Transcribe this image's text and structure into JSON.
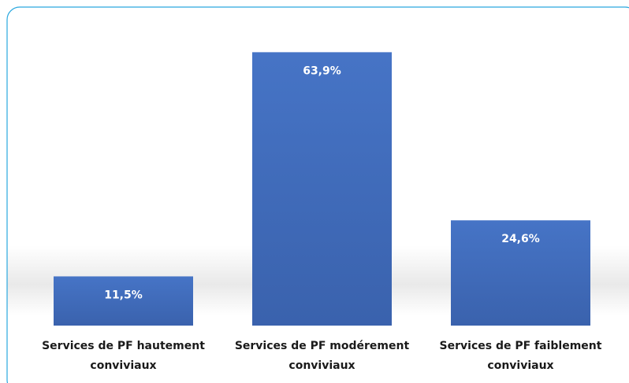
{
  "chart_data": {
    "type": "bar",
    "categories": [
      "Services de PF hautement conviviaux",
      "Services de PF modérement conviviaux",
      "Services de PF faiblement conviviaux"
    ],
    "values": [
      11.5,
      63.9,
      24.6
    ],
    "value_labels": [
      "11,5%",
      "63,9%",
      "24,6%"
    ],
    "color": "#4472c4"
  }
}
